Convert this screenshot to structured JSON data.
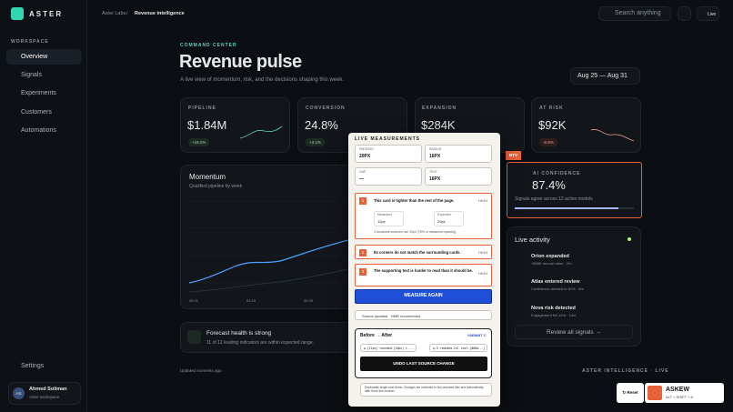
{
  "sidebar": {
    "brand": "ASTER",
    "section": "WORKSPACE",
    "nav": [
      "Overview",
      "Signals",
      "Experiments",
      "Customers",
      "Automations"
    ],
    "settings": "Settings",
    "user": {
      "initials": "AS",
      "name": "Ahmed Soliman",
      "workspace": "Aster workspace"
    }
  },
  "topbar": {
    "breadcrumb": [
      "Aster Labs",
      "/",
      "Revenue intelligence"
    ],
    "search": "Search anything",
    "live": "Live"
  },
  "header": {
    "eyebrow": "COMMAND CENTER",
    "title": "Revenue pulse",
    "subtitle": "A live view of momentum, risk, and the decisions shaping this week.",
    "date_range": "Aug 25 — Aug 31"
  },
  "kpis": [
    {
      "label": "PIPELINE",
      "value": "$1.84M",
      "delta": "+18.2%"
    },
    {
      "label": "CONVERSION",
      "value": "24.8%",
      "delta": "+3.1%"
    },
    {
      "label": "EXPANSION",
      "value": "$284K"
    },
    {
      "label": "AT RISK",
      "value": "$92K",
      "delta": "-6.8%"
    }
  ],
  "momentum": {
    "title": "Momentum",
    "subtitle": "Qualified pipeline by week",
    "x_labels": [
      "05.01",
      "05.15",
      "05.29"
    ]
  },
  "forecast": {
    "title": "Forecast health is strong",
    "text": "11 of 12 leading indicators are within expected range."
  },
  "confidence": {
    "tag": "BTV",
    "label": "AI CONFIDENCE",
    "value": "87.4%",
    "text": "Signals agree across 12 active models"
  },
  "activity": {
    "title": "Live activity",
    "items": [
      {
        "title": "Orion expanded",
        "meta": "+$38K annual value · 2m"
      },
      {
        "title": "Atlas entered review",
        "meta": "Confidence climbed to 81% · 6m"
      },
      {
        "title": "Nova risk detected",
        "meta": "Engagement fell 14% · 14m"
      }
    ],
    "link": "Review all signals →"
  },
  "footer": {
    "left": "Updated moments ago",
    "right": "ASTER INTELLIGENCE · LIVE"
  },
  "overlay": {
    "title": "LIVE MEASUREMENTS",
    "fields": [
      {
        "label": "PADDING",
        "value": "20PX"
      },
      {
        "label": "RADIUS",
        "value": "16PX"
      },
      {
        "label": "GAP",
        "value": "—"
      },
      {
        "label": "TEXT",
        "value": "16PX"
      }
    ],
    "issues": [
      {
        "num": "1",
        "text": "This card is tighter than the rest of the page.",
        "level": "HIGH"
      },
      {
        "num": "2",
        "text": "Its corners do not match the surrounding cards.",
        "level": "HIGH"
      },
      {
        "num": "3",
        "text": "The supporting text is harder to read than it should be.",
        "level": "HIGH"
      }
    ],
    "measured_label": "Measured",
    "measured": "12px",
    "expected_label": "Expected",
    "expected": "20px",
    "note": "3 structural surfaces use 20px (75% of measured spacing)",
    "measure_button": "MEASURE AGAIN",
    "status": "Source updated · HMR reconnected",
    "diff_title": "Before → After",
    "variant": "VARIANT C",
    "before_code": "p-[12px] rounded-[10px] t-...",
    "after_code": "p-5 rounded-2xl text-[#d8d...]",
    "undo": "UNDO LAST SOURCE CHANGE",
    "disclaimer": "Deployable single-user demo. Changes are restricted to two prepared files and automatically after three-line revision."
  },
  "toast": {
    "reset": "↻ Reset",
    "name": "ASKEW",
    "shortcut": "ALT + SHIFT + A"
  }
}
